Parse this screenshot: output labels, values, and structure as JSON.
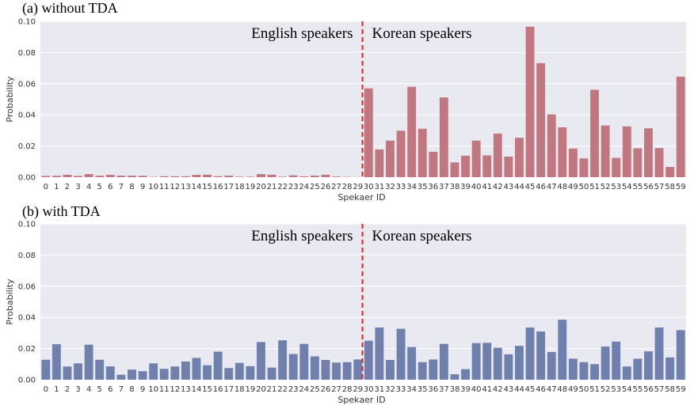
{
  "chart_data": [
    {
      "type": "bar",
      "title": "(a) without TDA",
      "xlabel": "Spekaer ID",
      "ylabel": "Probability",
      "ylim": [
        0,
        0.1
      ],
      "yticks": [
        "0.00",
        "0.02",
        "0.04",
        "0.06",
        "0.08",
        "0.10"
      ],
      "grid": true,
      "color": "#c0777f",
      "annotations": {
        "left": "English speakers",
        "right": "Korean speakers"
      },
      "divider_after_category": "29",
      "divider_color": "#e0201b",
      "categories": [
        "0",
        "1",
        "2",
        "3",
        "4",
        "5",
        "6",
        "7",
        "8",
        "9",
        "10",
        "11",
        "12",
        "13",
        "14",
        "15",
        "16",
        "17",
        "18",
        "19",
        "20",
        "21",
        "22",
        "23",
        "24",
        "25",
        "26",
        "27",
        "28",
        "29",
        "30",
        "31",
        "32",
        "33",
        "34",
        "35",
        "36",
        "37",
        "38",
        "39",
        "40",
        "41",
        "42",
        "43",
        "44",
        "45",
        "46",
        "47",
        "48",
        "49",
        "50",
        "51",
        "52",
        "53",
        "54",
        "55",
        "56",
        "57",
        "58",
        "59"
      ],
      "values": [
        0.0008,
        0.0009,
        0.0015,
        0.0008,
        0.002,
        0.0009,
        0.0015,
        0.001,
        0.001,
        0.0009,
        0.0002,
        0.0006,
        0.0006,
        0.0006,
        0.0015,
        0.0016,
        0.0006,
        0.001,
        0.0003,
        0.0003,
        0.002,
        0.0016,
        0.0003,
        0.0012,
        0.0005,
        0.001,
        0.0016,
        0.0004,
        0.0002,
        0.0001,
        0.057,
        0.0178,
        0.0235,
        0.0298,
        0.058,
        0.0311,
        0.0163,
        0.0512,
        0.0095,
        0.0138,
        0.0235,
        0.014,
        0.028,
        0.0132,
        0.0253,
        0.0966,
        0.0732,
        0.0403,
        0.032,
        0.0184,
        0.0121,
        0.0561,
        0.0332,
        0.0124,
        0.0326,
        0.0186,
        0.0314,
        0.0187,
        0.0066,
        0.0645
      ]
    },
    {
      "type": "bar",
      "title": "(b) with TDA",
      "xlabel": "Spekaer ID",
      "ylabel": "Probability",
      "ylim": [
        0,
        0.1
      ],
      "yticks": [
        "0.00",
        "0.02",
        "0.04",
        "0.06",
        "0.08",
        "0.10"
      ],
      "grid": true,
      "color": "#7080ac",
      "annotations": {
        "left": "English speakers",
        "right": "Korean speakers"
      },
      "divider_after_category": "29",
      "divider_color": "#e0201b",
      "categories": [
        "0",
        "1",
        "2",
        "3",
        "4",
        "5",
        "6",
        "7",
        "8",
        "9",
        "10",
        "11",
        "12",
        "13",
        "14",
        "15",
        "16",
        "17",
        "18",
        "19",
        "20",
        "21",
        "22",
        "23",
        "24",
        "25",
        "26",
        "27",
        "28",
        "29",
        "30",
        "31",
        "32",
        "33",
        "34",
        "35",
        "36",
        "37",
        "38",
        "39",
        "40",
        "41",
        "42",
        "43",
        "44",
        "45",
        "46",
        "47",
        "48",
        "49",
        "50",
        "51",
        "52",
        "53",
        "54",
        "55",
        "56",
        "57",
        "58",
        "59"
      ],
      "values": [
        0.0128,
        0.0228,
        0.0085,
        0.0105,
        0.0225,
        0.0128,
        0.0086,
        0.0032,
        0.0065,
        0.0055,
        0.0105,
        0.007,
        0.0085,
        0.0117,
        0.014,
        0.0093,
        0.018,
        0.0075,
        0.0108,
        0.0087,
        0.0242,
        0.0078,
        0.0253,
        0.0165,
        0.023,
        0.015,
        0.0127,
        0.011,
        0.0113,
        0.013,
        0.025,
        0.0335,
        0.0127,
        0.0327,
        0.021,
        0.0113,
        0.013,
        0.023,
        0.0035,
        0.0068,
        0.0235,
        0.0237,
        0.0205,
        0.0163,
        0.0218,
        0.0335,
        0.031,
        0.0178,
        0.0385,
        0.0135,
        0.0113,
        0.01,
        0.0213,
        0.0245,
        0.0085,
        0.0135,
        0.0182,
        0.0335,
        0.0143,
        0.0318
      ]
    }
  ]
}
